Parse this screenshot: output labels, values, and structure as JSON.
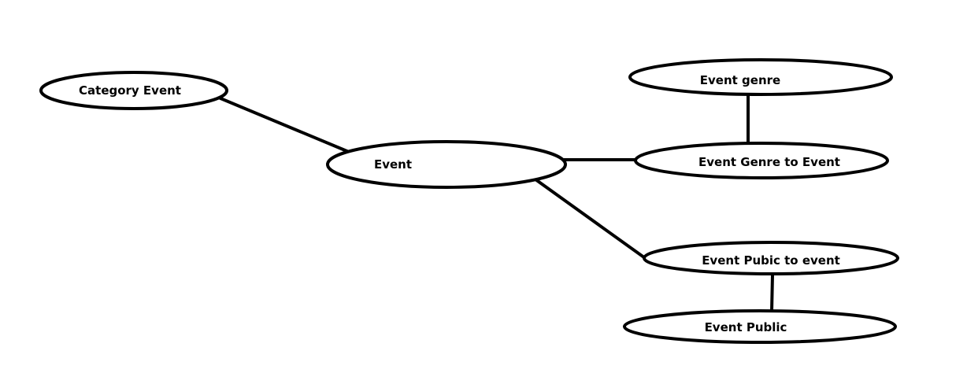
{
  "diagram": {
    "colors": {
      "background": "#ffffff",
      "stroke": "#000000",
      "text": "#000000"
    },
    "nodes": {
      "category_event": "Category Event",
      "event": "Event",
      "event_genre": "Event genre",
      "event_genre_to_event": "Event Genre to Event",
      "event_pubic_to_event": "Event Pubic to event",
      "event_public": "Event Public"
    },
    "edges": [
      {
        "from": "category_event",
        "to": "event"
      },
      {
        "from": "event",
        "to": "event_genre_to_event"
      },
      {
        "from": "event_genre",
        "to": "event_genre_to_event"
      },
      {
        "from": "event",
        "to": "event_pubic_to_event"
      },
      {
        "from": "event_pubic_to_event",
        "to": "event_public"
      }
    ]
  }
}
